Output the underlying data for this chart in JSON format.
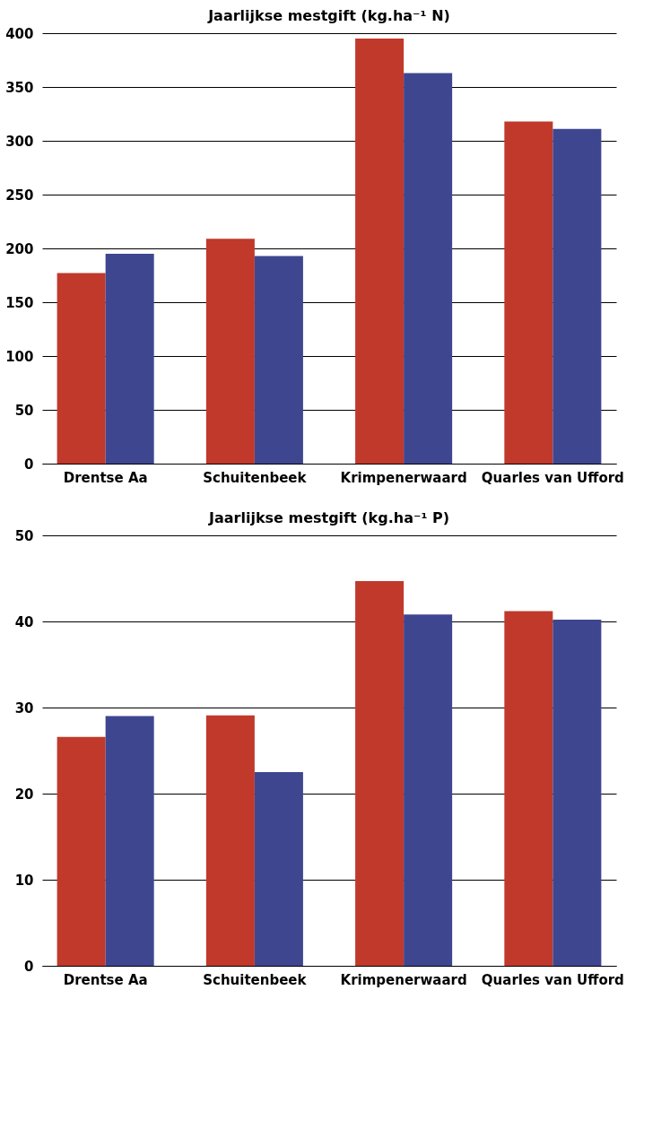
{
  "chart_data": [
    {
      "type": "bar",
      "title": "Jaarlijkse mestgift (kg.ha⁻¹ N)",
      "categories": [
        "Drentse Aa",
        "Schuitenbeek",
        "Krimpenerwaard",
        "Quarles van Ufford"
      ],
      "series": [
        {
          "color": "#c0392b",
          "values": [
            177,
            209,
            395,
            318
          ]
        },
        {
          "color": "#3f4690",
          "values": [
            195,
            193,
            363,
            311
          ]
        }
      ],
      "ylim": [
        0,
        400
      ],
      "yticks": [
        0,
        50,
        100,
        150,
        200,
        250,
        300,
        350,
        400
      ],
      "grid": "y",
      "legend": false
    },
    {
      "type": "bar",
      "title": "Jaarlijkse mestgift (kg.ha⁻¹ P)",
      "categories": [
        "Drentse Aa",
        "Schuitenbeek",
        "Krimpenerwaard",
        "Quarles van Ufford"
      ],
      "series": [
        {
          "color": "#c0392b",
          "values": [
            26.6,
            29.1,
            44.7,
            41.2
          ]
        },
        {
          "color": "#3f4690",
          "values": [
            29.0,
            22.5,
            40.8,
            40.2
          ]
        }
      ],
      "ylim": [
        0,
        50
      ],
      "yticks": [
        0,
        10,
        20,
        30,
        40,
        50
      ],
      "grid": "y",
      "legend": false
    }
  ]
}
